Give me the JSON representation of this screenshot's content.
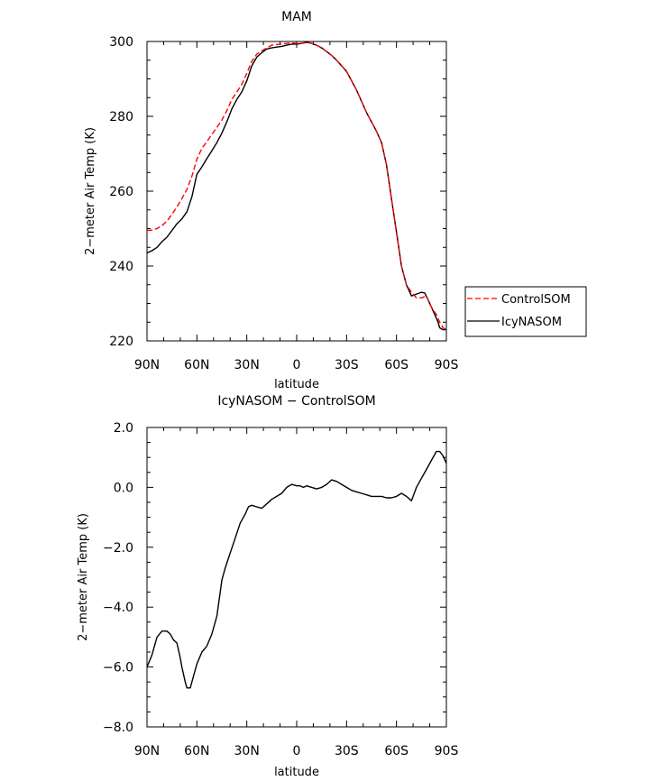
{
  "chart_data": [
    {
      "type": "line",
      "title": "MAM",
      "xlabel": "latitude",
      "ylabel": "2−meter Air Temp (K)",
      "x_ticks": [
        "90N",
        "60N",
        "30N",
        "0",
        "30S",
        "60S",
        "90S"
      ],
      "x_tick_values": [
        90,
        60,
        30,
        0,
        -30,
        -60,
        -90
      ],
      "xlim": [
        90,
        -90
      ],
      "y_ticks": [
        "220",
        "240",
        "260",
        "280",
        "300"
      ],
      "y_tick_values": [
        220,
        240,
        260,
        280,
        300
      ],
      "ylim": [
        220,
        300
      ],
      "grid": false,
      "legend_position": "right",
      "series": [
        {
          "name": "ControlSOM",
          "color": "#ff0000",
          "dash": "dashed",
          "x": [
            90,
            87,
            84,
            81,
            78,
            75,
            72,
            69,
            66,
            63,
            60,
            57,
            54,
            51,
            48,
            45,
            42,
            39,
            36,
            33,
            30,
            27,
            24,
            21,
            18,
            15,
            12,
            9,
            6,
            3,
            0,
            -3,
            -6,
            -9,
            -12,
            -15,
            -18,
            -21,
            -24,
            -27,
            -30,
            -33,
            -36,
            -39,
            -42,
            -45,
            -48,
            -51,
            -54,
            -57,
            -60,
            -63,
            -66,
            -69,
            -72,
            -75,
            -78,
            -81,
            -84,
            -86,
            -88,
            -90
          ],
          "y": [
            249.5,
            249.6,
            250.0,
            250.8,
            252.0,
            253.8,
            255.8,
            258.0,
            260.5,
            264.0,
            268.5,
            271.5,
            273.2,
            275.2,
            277.0,
            279.0,
            281.5,
            284.5,
            286.5,
            288.5,
            291.5,
            294.7,
            296.6,
            297.5,
            298.3,
            299.0,
            299.2,
            299.3,
            299.5,
            299.6,
            299.5,
            299.5,
            299.7,
            299.5,
            299.0,
            298.3,
            297.3,
            296.3,
            295.0,
            293.5,
            292.0,
            289.5,
            287.0,
            284.0,
            281.0,
            278.5,
            276.0,
            273.0,
            267.0,
            258.0,
            249.0,
            240.0,
            235.0,
            233.0,
            231.5,
            231.5,
            232.0,
            229.0,
            227.0,
            225.0,
            223.5,
            223.0
          ]
        },
        {
          "name": "IcyNASOM",
          "color": "#000000",
          "dash": "solid",
          "x": [
            90,
            87,
            84,
            81,
            78,
            75,
            72,
            69,
            66,
            63,
            60,
            57,
            54,
            51,
            48,
            45,
            42,
            39,
            36,
            33,
            30,
            27,
            24,
            21,
            18,
            15,
            12,
            9,
            6,
            3,
            0,
            -3,
            -6,
            -9,
            -12,
            -15,
            -18,
            -21,
            -24,
            -27,
            -30,
            -33,
            -36,
            -39,
            -42,
            -45,
            -48,
            -51,
            -54,
            -57,
            -60,
            -63,
            -66,
            -69,
            -72,
            -75,
            -77,
            -79,
            -81,
            -83,
            -85,
            -86,
            -88,
            -90
          ],
          "y": [
            243.5,
            244.1,
            245.0,
            246.5,
            247.7,
            249.5,
            251.3,
            252.6,
            254.5,
            258.5,
            264.5,
            266.5,
            268.7,
            270.8,
            273.0,
            275.5,
            278.5,
            282.0,
            284.5,
            286.5,
            289.5,
            293.5,
            295.8,
            297.0,
            298.0,
            298.3,
            298.5,
            298.7,
            299.0,
            299.3,
            299.3,
            299.5,
            299.8,
            299.5,
            299.0,
            298.3,
            297.3,
            296.3,
            295.0,
            293.5,
            292.0,
            289.5,
            287.0,
            284.0,
            281.0,
            278.5,
            276.0,
            273.0,
            267.0,
            258.0,
            249.0,
            240.0,
            235.0,
            232.0,
            232.5,
            233.0,
            232.8,
            231.0,
            229.0,
            227.0,
            225.0,
            223.5,
            223.0,
            223.0
          ]
        }
      ]
    },
    {
      "type": "line",
      "title": "IcyNASOM − ControlSOM",
      "xlabel": "latitude",
      "ylabel": "2−meter Air Temp (K)",
      "x_ticks": [
        "90N",
        "60N",
        "30N",
        "0",
        "30S",
        "60S",
        "90S"
      ],
      "x_tick_values": [
        90,
        60,
        30,
        0,
        -30,
        -60,
        -90
      ],
      "xlim": [
        90,
        -90
      ],
      "y_ticks": [
        "2.0",
        "0.0",
        "−2.0",
        "−4.0",
        "−6.0",
        "−8.0"
      ],
      "y_tick_values": [
        2,
        0,
        -2,
        -4,
        -6,
        -8
      ],
      "ylim": [
        -8,
        2
      ],
      "grid": false,
      "series": [
        {
          "color": "#000000",
          "dash": "solid",
          "x": [
            90,
            87,
            84,
            81,
            78,
            76,
            74,
            72,
            70,
            69,
            67,
            66,
            64,
            62,
            60,
            57,
            54,
            51,
            48,
            46,
            45,
            43,
            40,
            37,
            34,
            31,
            29,
            27,
            24,
            21,
            18,
            15,
            12,
            9,
            6,
            3,
            0,
            -2,
            -4,
            -6,
            -9,
            -12,
            -15,
            -18,
            -21,
            -24,
            -27,
            -30,
            -33,
            -36,
            -39,
            -42,
            -45,
            -48,
            -51,
            -54,
            -57,
            -60,
            -63,
            -66,
            -69,
            -72,
            -75,
            -78,
            -81,
            -84,
            -86,
            -88,
            -90
          ],
          "y": [
            -6.0,
            -5.6,
            -5.0,
            -4.8,
            -4.8,
            -4.9,
            -5.1,
            -5.2,
            -5.7,
            -6.0,
            -6.5,
            -6.7,
            -6.7,
            -6.3,
            -5.9,
            -5.5,
            -5.3,
            -4.9,
            -4.3,
            -3.5,
            -3.1,
            -2.7,
            -2.2,
            -1.7,
            -1.2,
            -0.9,
            -0.65,
            -0.6,
            -0.65,
            -0.7,
            -0.55,
            -0.4,
            -0.3,
            -0.2,
            0.0,
            0.1,
            0.05,
            0.05,
            0.0,
            0.05,
            0.0,
            -0.05,
            0.0,
            0.1,
            0.25,
            0.2,
            0.1,
            0.0,
            -0.1,
            -0.15,
            -0.2,
            -0.25,
            -0.3,
            -0.3,
            -0.3,
            -0.35,
            -0.35,
            -0.3,
            -0.2,
            -0.3,
            -0.45,
            0.0,
            0.3,
            0.6,
            0.9,
            1.2,
            1.2,
            1.05,
            0.8
          ]
        }
      ]
    }
  ]
}
